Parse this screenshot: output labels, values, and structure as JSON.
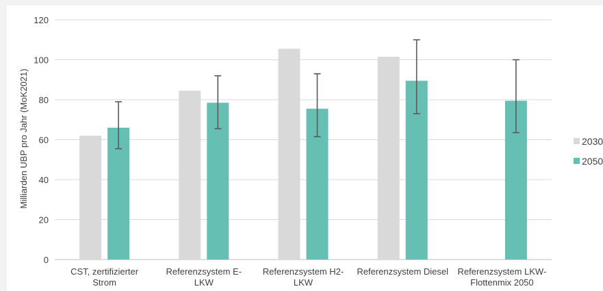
{
  "chart_data": {
    "type": "bar",
    "title": "",
    "xlabel": "",
    "ylabel": "Milliarden UBP pro Jahr (MoK2021)",
    "ylim": [
      0,
      120
    ],
    "yticks": [
      0,
      20,
      40,
      60,
      80,
      100,
      120
    ],
    "grid": true,
    "legend_position": "right",
    "categories": [
      [
        "CST, zertifizierter",
        "Strom"
      ],
      [
        "Referenzsystem E-",
        "LKW"
      ],
      [
        "Referenzsystem H2-",
        "LKW"
      ],
      [
        "Referenzsystem Diesel"
      ],
      [
        "Referenzsystem LKW-",
        "Flottenmix 2050"
      ]
    ],
    "series": [
      {
        "name": "2030",
        "color": "#d9d9d9",
        "values": [
          62,
          84.5,
          105.5,
          101.5,
          null
        ]
      },
      {
        "name": "2050",
        "color": "#66bfb3",
        "values": [
          66,
          78.5,
          75.5,
          89.5,
          79.5
        ],
        "error_low": [
          55.5,
          65.5,
          61.5,
          73,
          63.5
        ],
        "error_high": [
          79,
          92,
          93,
          110,
          100
        ]
      }
    ]
  }
}
